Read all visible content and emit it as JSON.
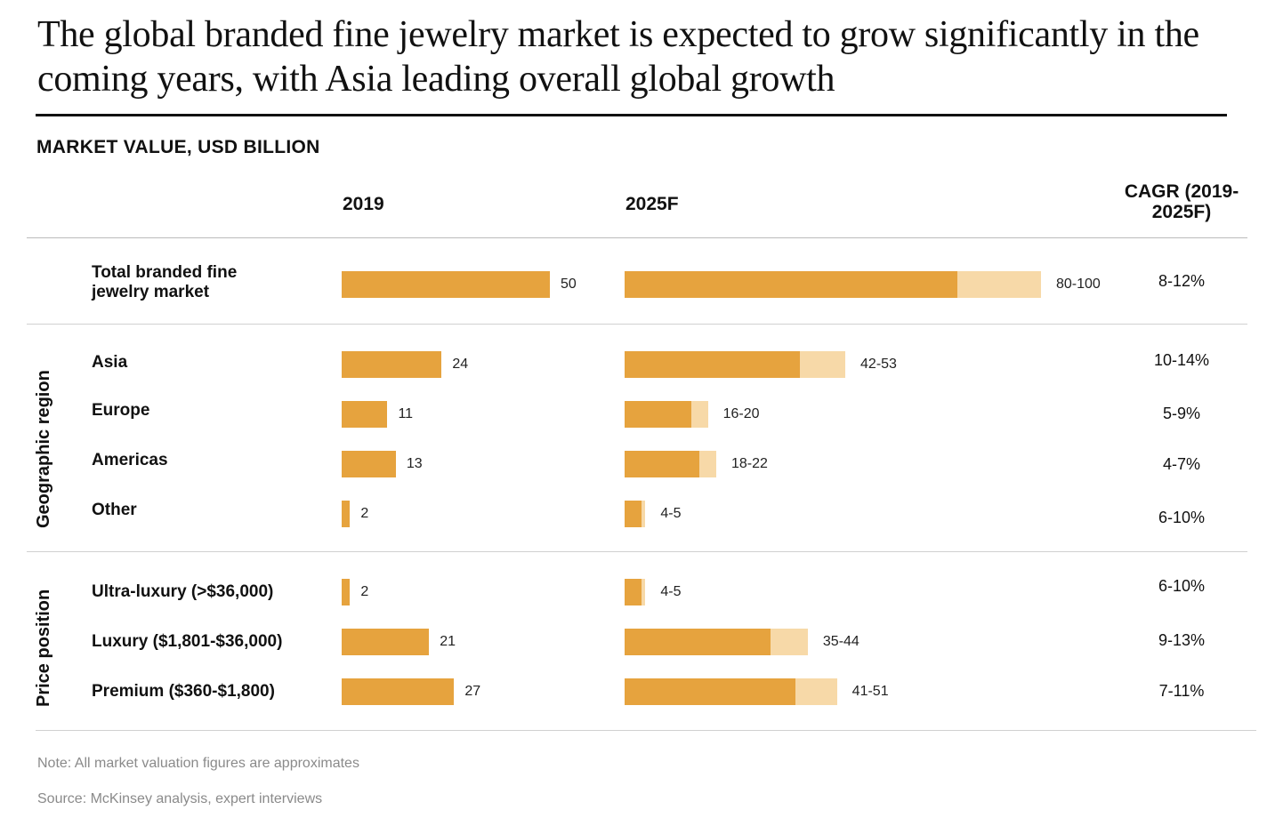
{
  "title": "The global branded fine jewelry market is expected to grow significantly in the coming years, with Asia leading overall global growth",
  "subtitle": "MARKET VALUE, USD BILLION",
  "columns": {
    "y2019": "2019",
    "y2025": "2025F",
    "cagr": "CAGR (2019-2025F)"
  },
  "groups": {
    "geographic": "Geographic region",
    "price": "Price position"
  },
  "note": "Note: All market valuation figures are approximates",
  "source": "Source: McKinsey analysis, expert interviews",
  "colors": {
    "solid": "#e6a33e",
    "range": "#f7d9a8"
  },
  "chart_data": {
    "type": "bar",
    "orientation": "horizontal",
    "units": "USD billion",
    "rows": [
      {
        "label": "Total branded fine jewelry market",
        "group": "",
        "v2019": 50,
        "v2019_label": "50",
        "v2025_low": 80,
        "v2025_high": 100,
        "v2025_label": "80-100",
        "cagr": "8-12%"
      },
      {
        "label": "Asia",
        "group": "Geographic region",
        "v2019": 24,
        "v2019_label": "24",
        "v2025_low": 42,
        "v2025_high": 53,
        "v2025_label": "42-53",
        "cagr": "10-14%"
      },
      {
        "label": "Europe",
        "group": "Geographic region",
        "v2019": 11,
        "v2019_label": "11",
        "v2025_low": 16,
        "v2025_high": 20,
        "v2025_label": "16-20",
        "cagr": "5-9%"
      },
      {
        "label": "Americas",
        "group": "Geographic region",
        "v2019": 13,
        "v2019_label": "13",
        "v2025_low": 18,
        "v2025_high": 22,
        "v2025_label": "18-22",
        "cagr": "4-7%"
      },
      {
        "label": "Other",
        "group": "Geographic region",
        "v2019": 2,
        "v2019_label": "2",
        "v2025_low": 4,
        "v2025_high": 5,
        "v2025_label": "4-5",
        "cagr": "6-10%"
      },
      {
        "label": "Ultra-luxury (>$36,000)",
        "group": "Price position",
        "v2019": 2,
        "v2019_label": "2",
        "v2025_low": 4,
        "v2025_high": 5,
        "v2025_label": "4-5",
        "cagr": "6-10%"
      },
      {
        "label": "Luxury ($1,801-$36,000)",
        "group": "Price position",
        "v2019": 21,
        "v2019_label": "21",
        "v2025_low": 35,
        "v2025_high": 44,
        "v2025_label": "35-44",
        "cagr": "9-13%"
      },
      {
        "label": "Premium ($360-$1,800)",
        "group": "Price position",
        "v2019": 27,
        "v2019_label": "27",
        "v2025_low": 41,
        "v2025_high": 51,
        "v2025_label": "41-51",
        "cagr": "7-11%"
      }
    ]
  }
}
